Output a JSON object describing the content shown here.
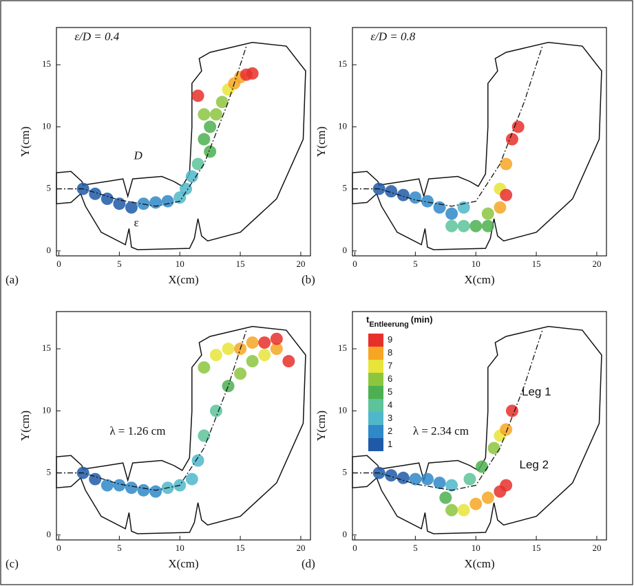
{
  "chart_data": [
    {
      "type": "scatter",
      "label": "(a)",
      "xlabel": "X(cm)",
      "ylabel": "Y(cm)",
      "xlim": [
        -0.2,
        20.8
      ],
      "ylim": [
        -0.4,
        18
      ],
      "xticks": [
        0,
        5,
        10,
        15,
        20
      ],
      "yticks": [
        0,
        5,
        10,
        15
      ],
      "annotations": [
        "ε/D = 0.4",
        "D",
        "ε"
      ],
      "x": [
        2,
        3,
        4,
        5,
        6,
        7,
        8,
        9,
        10,
        10.5,
        11,
        11.5,
        12,
        12,
        12.5,
        13,
        13.5,
        14,
        14.5,
        15,
        15.5,
        16,
        11.5,
        12.5
      ],
      "y": [
        5,
        4.6,
        4.2,
        3.8,
        3.5,
        3.8,
        3.9,
        4,
        4.3,
        5,
        6,
        7,
        9,
        11,
        10,
        11,
        12,
        13,
        13.5,
        14,
        14.2,
        14.3,
        12.5,
        8
      ],
      "values": [
        1,
        1,
        1,
        1,
        1,
        2,
        2,
        2,
        3,
        3,
        3,
        4,
        5,
        6,
        5,
        6,
        6,
        7,
        8,
        8,
        9,
        9,
        9,
        5
      ]
    },
    {
      "type": "scatter",
      "label": "(b)",
      "xlabel": "X(cm)",
      "ylabel": "Y(cm)",
      "xlim": [
        -0.2,
        20.8
      ],
      "ylim": [
        -0.4,
        18
      ],
      "xticks": [
        0,
        5,
        10,
        15,
        20
      ],
      "yticks": [
        0,
        5,
        10,
        15
      ],
      "annotations": [
        "ε/D = 0.8"
      ],
      "x": [
        2,
        3,
        4,
        5,
        6,
        7,
        8,
        8,
        9,
        9,
        10,
        11,
        11,
        12,
        12,
        12.5,
        12.5,
        13,
        13.5
      ],
      "y": [
        5,
        4.8,
        4.5,
        4.3,
        4,
        3.5,
        3,
        2,
        3.5,
        2,
        2,
        3,
        2,
        5,
        3.5,
        7,
        4.5,
        9,
        10
      ],
      "values": [
        1,
        1,
        1,
        2,
        2,
        2,
        2,
        4,
        3,
        4,
        5,
        6,
        5,
        7,
        8,
        8,
        9,
        9,
        9
      ]
    },
    {
      "type": "scatter",
      "label": "(c)",
      "xlabel": "X(cm)",
      "ylabel": "Y(cm)",
      "xlim": [
        -0.2,
        20.8
      ],
      "ylim": [
        -0.4,
        18
      ],
      "xticks": [
        0,
        5,
        10,
        15,
        20
      ],
      "yticks": [
        0,
        5,
        10,
        15
      ],
      "annotations": [
        "λ = 1.26 cm"
      ],
      "x": [
        2,
        3,
        4,
        5,
        6,
        7,
        8,
        9,
        10,
        11,
        11.5,
        12,
        13,
        14,
        15,
        16,
        17,
        18,
        12,
        13,
        14,
        15,
        16,
        17,
        18,
        19
      ],
      "y": [
        5,
        4.5,
        4,
        4,
        3.8,
        3.6,
        3.5,
        3.8,
        4,
        4.5,
        6,
        8,
        10,
        12,
        13,
        14,
        14.5,
        15,
        13.5,
        14.5,
        15,
        15,
        15.5,
        15.5,
        15.8,
        14
      ],
      "values": [
        1,
        1,
        2,
        2,
        2,
        2,
        2,
        3,
        3,
        3,
        3,
        4,
        4,
        5,
        6,
        6,
        7,
        8,
        6,
        7,
        7,
        8,
        8,
        9,
        9,
        9
      ]
    },
    {
      "type": "scatter",
      "label": "(d)",
      "xlabel": "X(cm)",
      "ylabel": "Y(cm)",
      "xlim": [
        -0.2,
        20.8
      ],
      "ylim": [
        -0.4,
        18
      ],
      "xticks": [
        0,
        5,
        10,
        15,
        20
      ],
      "yticks": [
        0,
        5,
        10,
        15
      ],
      "annotations": [
        "λ = 2.34 cm",
        "Leg 1",
        "Leg 2"
      ],
      "x": [
        2,
        3,
        4,
        5,
        6,
        7,
        8,
        9.5,
        10.5,
        11.5,
        12,
        12.5,
        13,
        7.5,
        8,
        9,
        10,
        11,
        12,
        12.5
      ],
      "y": [
        5,
        4.8,
        4.6,
        4.5,
        4.5,
        4.2,
        4,
        4.5,
        5.5,
        7,
        8,
        8.5,
        10,
        3,
        2,
        2,
        2.5,
        3,
        3.5,
        4
      ],
      "values": [
        1,
        1,
        1,
        2,
        2,
        2,
        3,
        4,
        5,
        6,
        7,
        8,
        9,
        5,
        6,
        7,
        8,
        8,
        9,
        9
      ],
      "colorbar": {
        "title": "t",
        "subscript": "Entleerung",
        "unit": "(min)",
        "ticks": [
          1,
          2,
          3,
          4,
          5,
          6,
          7,
          8,
          9
        ],
        "colors": [
          "#1f5aa8",
          "#2f88c8",
          "#4fb7c9",
          "#5cc39a",
          "#4cb050",
          "#8cc63f",
          "#e8e43a",
          "#f6a623",
          "#e8302a"
        ]
      }
    }
  ]
}
